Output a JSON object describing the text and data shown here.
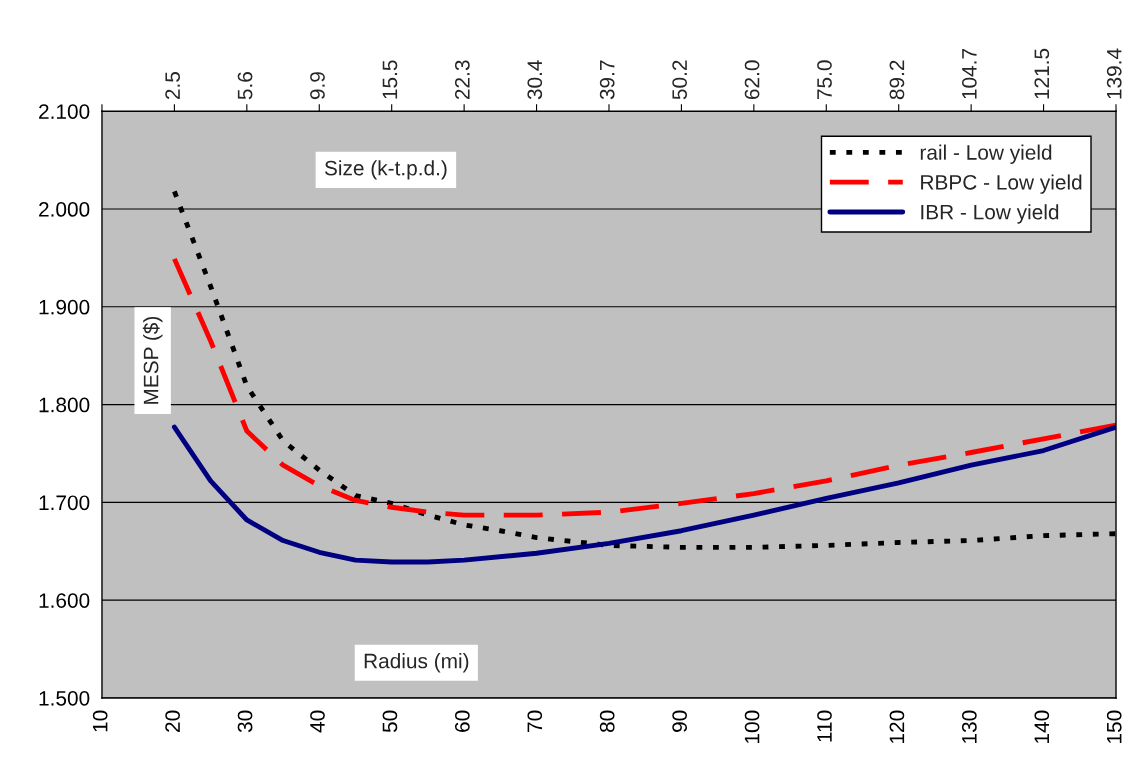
{
  "chart_data": {
    "type": "line",
    "xlabel": "Radius (mi)",
    "x2label": "Size (k-t.p.d.)",
    "ylabel": "MESP ($)",
    "xlim": [
      10,
      150
    ],
    "xticks": [
      10,
      20,
      30,
      40,
      50,
      60,
      70,
      80,
      90,
      100,
      110,
      120,
      130,
      140,
      150
    ],
    "annotations": [
      "2.5",
      "5.6",
      "9.9",
      "15.5",
      "22.3",
      "30.4",
      "39.7",
      "50.2",
      "62.0",
      "75.0",
      "89.2",
      "104.7",
      "121.5",
      "139.4"
    ],
    "ylim": [
      1.5,
      2.1
    ],
    "yticks": [
      {
        "value": 1.5,
        "label": "1.500"
      },
      {
        "value": 1.6,
        "label": "1.600"
      },
      {
        "value": 1.7,
        "label": "1.700"
      },
      {
        "value": 1.8,
        "label": "1.800"
      },
      {
        "value": 1.9,
        "label": "1.900"
      },
      {
        "value": 2.0,
        "label": "2.000"
      },
      {
        "value": 2.1,
        "label": "2.100"
      }
    ],
    "grid": "y",
    "legend": "top right",
    "series": [
      {
        "name": "rail - Low yield",
        "color": "#000000",
        "line_style": "dotted",
        "x": [
          20,
          25,
          30,
          35,
          40,
          45,
          50,
          55,
          60,
          65,
          70,
          80,
          90,
          100,
          110,
          120,
          130,
          140,
          150
        ],
        "values": [
          2.018,
          1.921,
          1.819,
          1.763,
          1.733,
          1.707,
          1.699,
          1.687,
          1.677,
          1.671,
          1.664,
          1.656,
          1.654,
          1.654,
          1.656,
          1.659,
          1.661,
          1.666,
          1.668
        ]
      },
      {
        "name": "RBPC - Low yield",
        "color": "#ff0000",
        "line_style": "dashed",
        "x": [
          20,
          25,
          30,
          35,
          40,
          45,
          50,
          55,
          60,
          70,
          80,
          90,
          100,
          110,
          120,
          130,
          140,
          150
        ],
        "values": [
          1.949,
          1.865,
          1.773,
          1.738,
          1.717,
          1.702,
          1.695,
          1.69,
          1.687,
          1.687,
          1.69,
          1.699,
          1.709,
          1.722,
          1.738,
          1.751,
          1.765,
          1.779
        ]
      },
      {
        "name": "IBR - Low yield",
        "color": "#000080",
        "line_style": "solid",
        "x": [
          20,
          25,
          30,
          35,
          40,
          45,
          50,
          55,
          60,
          70,
          80,
          90,
          100,
          110,
          120,
          130,
          140,
          150
        ],
        "values": [
          1.777,
          1.722,
          1.682,
          1.661,
          1.649,
          1.641,
          1.639,
          1.639,
          1.641,
          1.648,
          1.658,
          1.671,
          1.687,
          1.704,
          1.72,
          1.738,
          1.753,
          1.777
        ]
      }
    ]
  }
}
